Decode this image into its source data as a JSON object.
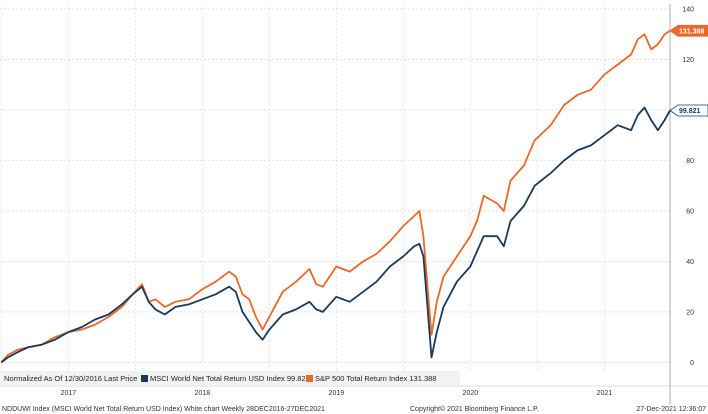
{
  "chart_data": {
    "type": "line",
    "title": "",
    "xlabel": "",
    "ylabel": "",
    "x_tick_labels": [
      "2017",
      "2018",
      "2019",
      "2020",
      "2021"
    ],
    "x_tick_years": [
      2017,
      2018,
      2019,
      2020,
      2021
    ],
    "y_ticks": [
      0,
      20,
      40,
      60,
      80,
      100,
      120,
      140
    ],
    "ylim": [
      -3,
      142
    ],
    "xlim": [
      2016.99,
      2021.99
    ],
    "grid": true,
    "legend_position": "bottom-left",
    "legend_prefix_1": "Normalized As Of 12/30/2016",
    "legend_prefix_2": "Last Price",
    "series": [
      {
        "name": "MSCI World Net Total Return USD Index",
        "legend_label": "MSCI World Net Total Return USD Index 99.821",
        "last_label": "99.821",
        "color": "#1a3a5c",
        "badge_fill": "#ffffff",
        "badge_text": "#1a3a5c",
        "points": [
          [
            2017.0,
            0
          ],
          [
            2017.05,
            2
          ],
          [
            2017.12,
            4
          ],
          [
            2017.2,
            6
          ],
          [
            2017.3,
            7
          ],
          [
            2017.4,
            9
          ],
          [
            2017.5,
            12
          ],
          [
            2017.6,
            14
          ],
          [
            2017.7,
            17
          ],
          [
            2017.8,
            19
          ],
          [
            2017.9,
            23
          ],
          [
            2017.98,
            27
          ],
          [
            2018.05,
            30
          ],
          [
            2018.1,
            24
          ],
          [
            2018.15,
            21
          ],
          [
            2018.22,
            19
          ],
          [
            2018.3,
            22
          ],
          [
            2018.4,
            23
          ],
          [
            2018.5,
            25
          ],
          [
            2018.6,
            27
          ],
          [
            2018.7,
            30
          ],
          [
            2018.75,
            28
          ],
          [
            2018.8,
            20
          ],
          [
            2018.85,
            16
          ],
          [
            2018.9,
            12
          ],
          [
            2018.95,
            9
          ],
          [
            2019.0,
            13
          ],
          [
            2019.1,
            19
          ],
          [
            2019.2,
            21
          ],
          [
            2019.3,
            24
          ],
          [
            2019.35,
            21
          ],
          [
            2019.4,
            20
          ],
          [
            2019.5,
            26
          ],
          [
            2019.6,
            24
          ],
          [
            2019.7,
            28
          ],
          [
            2019.8,
            32
          ],
          [
            2019.9,
            38
          ],
          [
            2020.0,
            42
          ],
          [
            2020.08,
            46
          ],
          [
            2020.12,
            47
          ],
          [
            2020.15,
            42
          ],
          [
            2020.18,
            22
          ],
          [
            2020.21,
            2
          ],
          [
            2020.25,
            12
          ],
          [
            2020.3,
            22
          ],
          [
            2020.4,
            32
          ],
          [
            2020.5,
            38
          ],
          [
            2020.55,
            44
          ],
          [
            2020.6,
            50
          ],
          [
            2020.7,
            50
          ],
          [
            2020.75,
            46
          ],
          [
            2020.8,
            56
          ],
          [
            2020.9,
            62
          ],
          [
            2020.98,
            70
          ],
          [
            2021.1,
            75
          ],
          [
            2021.2,
            80
          ],
          [
            2021.3,
            84
          ],
          [
            2021.4,
            86
          ],
          [
            2021.5,
            90
          ],
          [
            2021.6,
            94
          ],
          [
            2021.7,
            92
          ],
          [
            2021.75,
            98
          ],
          [
            2021.8,
            101
          ],
          [
            2021.85,
            96
          ],
          [
            2021.9,
            92
          ],
          [
            2021.95,
            96
          ],
          [
            2021.99,
            99.821
          ]
        ]
      },
      {
        "name": "S&P 500 Total Return Index",
        "legend_label": "S&P 500 Total Return Index 131.388",
        "last_label": "131.388",
        "color": "#e8692a",
        "badge_fill": "#e8692a",
        "badge_text": "#ffffff",
        "points": [
          [
            2017.0,
            0
          ],
          [
            2017.05,
            3
          ],
          [
            2017.12,
            5
          ],
          [
            2017.2,
            6
          ],
          [
            2017.3,
            7
          ],
          [
            2017.4,
            10
          ],
          [
            2017.5,
            12
          ],
          [
            2017.6,
            13
          ],
          [
            2017.7,
            15
          ],
          [
            2017.8,
            18
          ],
          [
            2017.9,
            22
          ],
          [
            2017.98,
            27
          ],
          [
            2018.05,
            31
          ],
          [
            2018.1,
            24
          ],
          [
            2018.15,
            25
          ],
          [
            2018.22,
            22
          ],
          [
            2018.3,
            24
          ],
          [
            2018.4,
            25
          ],
          [
            2018.5,
            29
          ],
          [
            2018.6,
            32
          ],
          [
            2018.7,
            36
          ],
          [
            2018.75,
            34
          ],
          [
            2018.8,
            27
          ],
          [
            2018.85,
            25
          ],
          [
            2018.9,
            18
          ],
          [
            2018.95,
            13
          ],
          [
            2019.0,
            18
          ],
          [
            2019.1,
            28
          ],
          [
            2019.2,
            32
          ],
          [
            2019.3,
            37
          ],
          [
            2019.35,
            31
          ],
          [
            2019.4,
            30
          ],
          [
            2019.5,
            38
          ],
          [
            2019.6,
            36
          ],
          [
            2019.7,
            40
          ],
          [
            2019.8,
            43
          ],
          [
            2019.9,
            48
          ],
          [
            2020.0,
            54
          ],
          [
            2020.08,
            58
          ],
          [
            2020.12,
            60
          ],
          [
            2020.15,
            50
          ],
          [
            2020.18,
            30
          ],
          [
            2020.21,
            11
          ],
          [
            2020.25,
            24
          ],
          [
            2020.3,
            34
          ],
          [
            2020.4,
            42
          ],
          [
            2020.5,
            50
          ],
          [
            2020.55,
            56
          ],
          [
            2020.6,
            66
          ],
          [
            2020.7,
            63
          ],
          [
            2020.75,
            60
          ],
          [
            2020.8,
            72
          ],
          [
            2020.9,
            78
          ],
          [
            2020.98,
            88
          ],
          [
            2021.1,
            94
          ],
          [
            2021.2,
            102
          ],
          [
            2021.3,
            106
          ],
          [
            2021.4,
            108
          ],
          [
            2021.5,
            114
          ],
          [
            2021.6,
            118
          ],
          [
            2021.7,
            122
          ],
          [
            2021.75,
            128
          ],
          [
            2021.8,
            130
          ],
          [
            2021.85,
            124
          ],
          [
            2021.9,
            126
          ],
          [
            2021.95,
            130
          ],
          [
            2021.99,
            131.388
          ]
        ]
      }
    ]
  },
  "footer": {
    "left": "NDDUWI Index (MSCI World Net Total Return USD Index) White chart  Weekly 28DEC2016-27DEC2021",
    "center": "Copyright© 2021 Bloomberg Finance L.P.",
    "right": "27-Dec-2021 12:36:07"
  }
}
